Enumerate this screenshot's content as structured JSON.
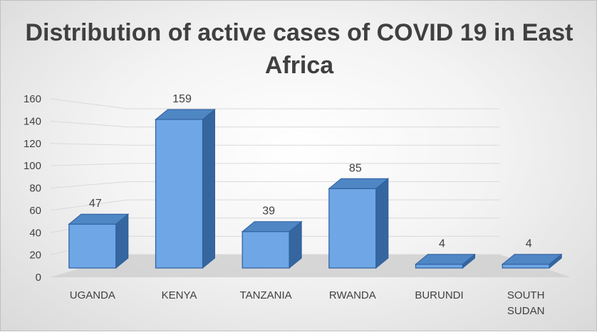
{
  "chart_data": {
    "type": "bar",
    "title": "Distribution of active cases of COVID 19 in East Africa",
    "categories": [
      "UGANDA",
      "KENYA",
      "TANZANIA",
      "RWANDA",
      "BURUNDI",
      "SOUTH SUDAN"
    ],
    "category_lines": [
      [
        "UGANDA"
      ],
      [
        "KENYA"
      ],
      [
        "TANZANIA"
      ],
      [
        "RWANDA"
      ],
      [
        "BURUNDI"
      ],
      [
        "SOUTH",
        "SUDAN"
      ]
    ],
    "values": [
      47,
      159,
      39,
      85,
      4,
      4
    ],
    "data_labels": [
      "47",
      "159",
      "39",
      "85",
      "4",
      "4"
    ],
    "ylim": [
      0,
      160
    ],
    "yticks": [
      0,
      20,
      40,
      60,
      80,
      100,
      120,
      140,
      160
    ],
    "xlabel": "",
    "ylabel": "",
    "grid": true,
    "legend": "none",
    "style_3d": true,
    "colors": {
      "bar_front": "#6ea6e6",
      "bar_top": "#4f86c4",
      "bar_side": "#36669f",
      "bar_edge": "#2e5f9e",
      "floor": "#d0d0d0",
      "grid": "#d9d9d9",
      "text": "#404040"
    }
  }
}
